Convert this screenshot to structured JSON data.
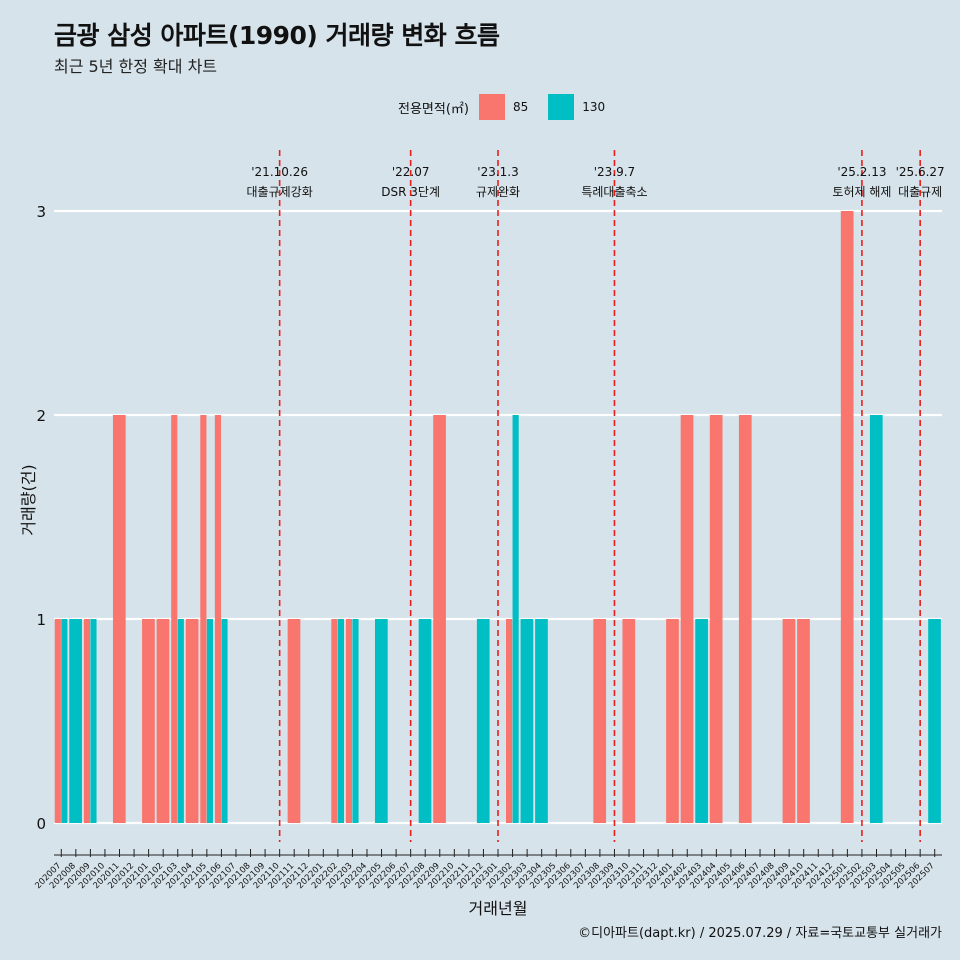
{
  "header": {
    "title": "금광 삼성 아파트(1990) 거래량 변화 흐름",
    "subtitle": "최근 5년 한정 확대 차트"
  },
  "legend": {
    "title": "전용면적(㎡)",
    "items": [
      {
        "label": "85",
        "color": "#f8766d"
      },
      {
        "label": "130",
        "color": "#00bfc4"
      }
    ]
  },
  "caption": "©디아파트(dapt.kr) / 2025.07.29 / 자료=국토교통부 실거래가",
  "chart_data": {
    "type": "bar",
    "title": "금광 삼성 아파트(1990) 거래량 변화 흐름",
    "subtitle": "최근 5년 한정 확대 차트",
    "xlabel": "거래년월",
    "ylabel": "거래량(건)",
    "ylim": [
      0,
      3
    ],
    "yticks": [
      0,
      1,
      2,
      3
    ],
    "grid": "horizontal",
    "legend_position": "top",
    "categories": [
      "202007",
      "202008",
      "202009",
      "202010",
      "202011",
      "202012",
      "202101",
      "202102",
      "202103",
      "202104",
      "202105",
      "202106",
      "202107",
      "202108",
      "202109",
      "202110",
      "202111",
      "202112",
      "202201",
      "202202",
      "202203",
      "202204",
      "202205",
      "202206",
      "202207",
      "202208",
      "202209",
      "202210",
      "202211",
      "202212",
      "202301",
      "202302",
      "202303",
      "202304",
      "202305",
      "202306",
      "202307",
      "202308",
      "202309",
      "202310",
      "202311",
      "202312",
      "202401",
      "202402",
      "202403",
      "202404",
      "202405",
      "202406",
      "202407",
      "202408",
      "202409",
      "202410",
      "202411",
      "202412",
      "202501",
      "202502",
      "202503",
      "202504",
      "202505",
      "202506",
      "202507"
    ],
    "bars": [
      {
        "month": "202007",
        "area": "85",
        "value": 1
      },
      {
        "month": "202007",
        "area": "130",
        "value": 1
      },
      {
        "month": "202008",
        "area": "130",
        "value": 1
      },
      {
        "month": "202009",
        "area": "85",
        "value": 1
      },
      {
        "month": "202009",
        "area": "130",
        "value": 1
      },
      {
        "month": "202011",
        "area": "85",
        "value": 2
      },
      {
        "month": "202101",
        "area": "85",
        "value": 1
      },
      {
        "month": "202102",
        "area": "85",
        "value": 1
      },
      {
        "month": "202103",
        "area": "85",
        "value": 2
      },
      {
        "month": "202103",
        "area": "130",
        "value": 1
      },
      {
        "month": "202104",
        "area": "85",
        "value": 1
      },
      {
        "month": "202105",
        "area": "85",
        "value": 2
      },
      {
        "month": "202105",
        "area": "130",
        "value": 1
      },
      {
        "month": "202106",
        "area": "85",
        "value": 2
      },
      {
        "month": "202106",
        "area": "130",
        "value": 1
      },
      {
        "month": "202111",
        "area": "85",
        "value": 1
      },
      {
        "month": "202202",
        "area": "85",
        "value": 1
      },
      {
        "month": "202202",
        "area": "130",
        "value": 1
      },
      {
        "month": "202203",
        "area": "85",
        "value": 1
      },
      {
        "month": "202203",
        "area": "130",
        "value": 1
      },
      {
        "month": "202205",
        "area": "130",
        "value": 1
      },
      {
        "month": "202208",
        "area": "130",
        "value": 1
      },
      {
        "month": "202209",
        "area": "85",
        "value": 2
      },
      {
        "month": "202212",
        "area": "130",
        "value": 1
      },
      {
        "month": "202302",
        "area": "85",
        "value": 1
      },
      {
        "month": "202302",
        "area": "130",
        "value": 2
      },
      {
        "month": "202303",
        "area": "130",
        "value": 1
      },
      {
        "month": "202304",
        "area": "130",
        "value": 1
      },
      {
        "month": "202308",
        "area": "85",
        "value": 1
      },
      {
        "month": "202310",
        "area": "85",
        "value": 1
      },
      {
        "month": "202401",
        "area": "85",
        "value": 1
      },
      {
        "month": "202402",
        "area": "85",
        "value": 2
      },
      {
        "month": "202403",
        "area": "130",
        "value": 1
      },
      {
        "month": "202404",
        "area": "85",
        "value": 2
      },
      {
        "month": "202406",
        "area": "85",
        "value": 2
      },
      {
        "month": "202409",
        "area": "85",
        "value": 1
      },
      {
        "month": "202410",
        "area": "85",
        "value": 1
      },
      {
        "month": "202501",
        "area": "85",
        "value": 3
      },
      {
        "month": "202503",
        "area": "130",
        "value": 2
      },
      {
        "month": "202507",
        "area": "130",
        "value": 1
      }
    ],
    "events": [
      {
        "date": "'21.10.26",
        "label": "대출규제강화",
        "month": "202110"
      },
      {
        "date": "'22.07",
        "label": "DSR 3단계",
        "month": "202207"
      },
      {
        "date": "'23.1.3",
        "label": "규제완화",
        "month": "202301"
      },
      {
        "date": "'23.9.7",
        "label": "특례대출축소",
        "month": "202309"
      },
      {
        "date": "'25.2.13",
        "label": "토허제 해제",
        "month": "202502"
      },
      {
        "date": "'25.6.27",
        "label": "대출규제",
        "month": "202506"
      }
    ]
  }
}
